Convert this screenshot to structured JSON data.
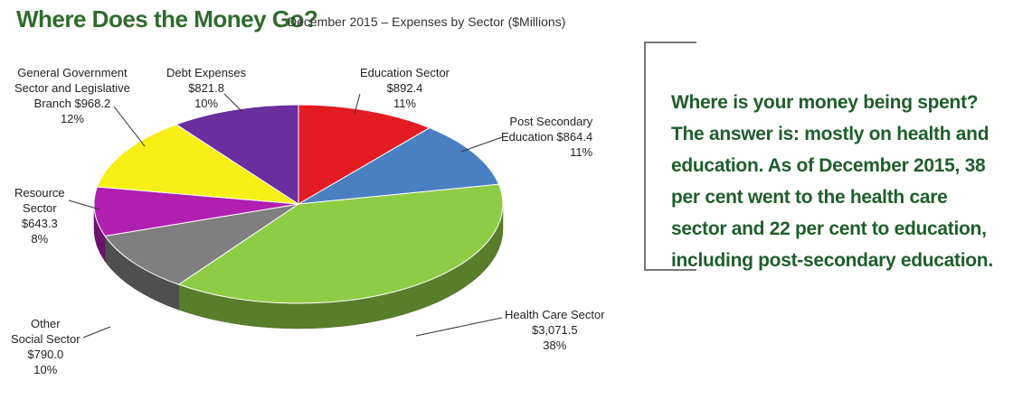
{
  "title": "Where Does the Money Go?",
  "subtitle": "December 2015 – Expenses by Sector ($Millions)",
  "note": "Where is your money being spent? The answer is: mostly on health and education. As of December 2015, 38 per cent went to the health care sector and 22 per cent to education, including post-secondary education.",
  "chart_data": {
    "type": "pie",
    "title": "Where Does the Money Go?",
    "subtitle": "December 2015 – Expenses by Sector ($Millions)",
    "slices": [
      {
        "name": "Education Sector",
        "value": 892.4,
        "value_label": "$892.4",
        "percent_label": "11%",
        "color": "#e31b23"
      },
      {
        "name": "Post Secondary Education",
        "value": 864.4,
        "value_label": "$864.4",
        "percent_label": "11%",
        "color": "#4a7fc1"
      },
      {
        "name": "Health Care Sector",
        "value": 3071.5,
        "value_label": "$3,071.5",
        "percent_label": "38%",
        "color": "#8fcc45"
      },
      {
        "name": "Other Social Sector",
        "value": 790.0,
        "value_label": "$790.0",
        "percent_label": "10%",
        "color": "#7f7f7f"
      },
      {
        "name": "Resource Sector",
        "value": 643.3,
        "value_label": "$643.3",
        "percent_label": "8%",
        "color": "#b01fb0"
      },
      {
        "name": "General Government Sector and Legislative Branch",
        "value": 968.2,
        "value_label": "$968.2",
        "percent_label": "12%",
        "color": "#f5ef16"
      },
      {
        "name": "Debt Expenses",
        "value": 821.8,
        "value_label": "$821.8",
        "percent_label": "10%",
        "color": "#6a2e9e"
      }
    ],
    "labels": {
      "edu": [
        "Education Sector",
        "$892.4",
        "11%"
      ],
      "post": [
        "Post Secondary",
        "Education  $864.4",
        "11%"
      ],
      "health": [
        "Health Care Sector",
        "$3,071.5",
        "38%"
      ],
      "other": [
        "Other",
        "Social Sector",
        "$790.0",
        "10%"
      ],
      "resource": [
        "Resource",
        "Sector",
        "$643.3",
        "8%"
      ],
      "gov": [
        "General Government",
        "Sector and Legislative",
        "Branch  $968.2",
        "12%"
      ],
      "debt": [
        "Debt Expenses",
        "$821.8",
        "10%"
      ]
    }
  }
}
